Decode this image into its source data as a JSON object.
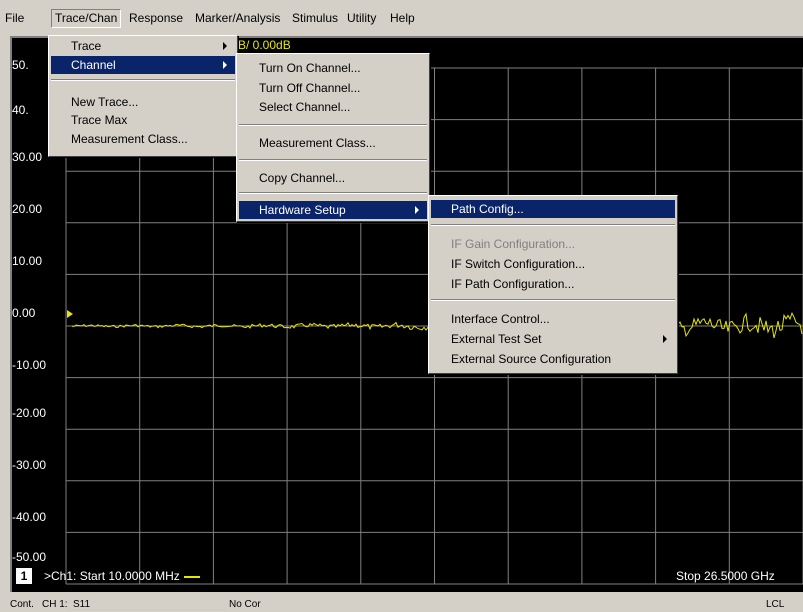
{
  "menubar": {
    "items": [
      "File",
      "Trace/Chan",
      "Response",
      "Marker/Analysis",
      "Stimulus",
      "Utility",
      "Help"
    ]
  },
  "trace_menu": {
    "items": [
      "Trace",
      "Channel",
      "New Trace...",
      "Trace Max",
      "Measurement Class..."
    ]
  },
  "channel_menu": {
    "items": [
      "Turn On Channel...",
      "Turn Off Channel...",
      "Select Channel...",
      "Measurement Class...",
      "Copy Channel...",
      "Hardware Setup"
    ]
  },
  "hardware_menu": {
    "items": [
      "Path Config...",
      "IF Gain Configuration...",
      "IF Switch Configuration...",
      "IF Path Configuration...",
      "Interface Control...",
      "External Test Set",
      "External Source Configuration"
    ]
  },
  "plot": {
    "trace_title": "B/ 0.00dB",
    "y_labels": [
      "50.",
      "40.",
      "30.00",
      "20.00",
      "10.00",
      "0.00",
      "-10.00",
      "-20.00",
      "-30.00",
      "-40.00",
      "-50.00"
    ],
    "channel_number": "1",
    "start_label": ">Ch1: Start  10.0000 MHz",
    "stop_label": "Stop  26.5000 GHz",
    "background_color": "#000000",
    "grid_color": "#808080",
    "trace_color": "#e6e600"
  },
  "status": {
    "mode": "Cont.",
    "channel": "CH 1:",
    "measurement": "S11",
    "correction": "No Cor",
    "control": "LCL"
  },
  "colors": {
    "menu_bg": "#d4d0c8",
    "highlight": "#0a246a"
  }
}
